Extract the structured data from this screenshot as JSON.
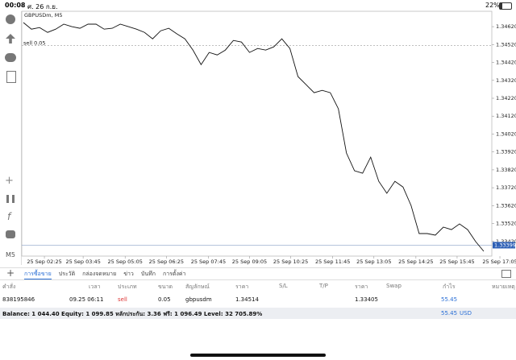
{
  "status_bar": {
    "time": "00:08",
    "date": "ศ. 26 ก.ย.",
    "battery": "22%"
  },
  "chart": {
    "type": "line",
    "symbol": "GBPUSDm, M5",
    "color": "#111111",
    "values": [
      1.34643,
      1.34606,
      1.34615,
      1.34588,
      1.34606,
      1.34634,
      1.3462,
      1.34611,
      1.34634,
      1.34634,
      1.34606,
      1.34611,
      1.34634,
      1.3462,
      1.34606,
      1.34588,
      1.34552,
      1.34597,
      1.34611,
      1.3458,
      1.34552,
      1.34489,
      1.34408,
      1.34476,
      1.34462,
      1.34489,
      1.34543,
      1.34534,
      1.34476,
      1.34498,
      1.34489,
      1.34507,
      1.34552,
      1.34498,
      1.34341,
      1.34296,
      1.34251,
      1.34264,
      1.34251,
      1.34161,
      1.33914,
      1.33815,
      1.33801,
      1.33891,
      1.33756,
      1.33689,
      1.33756,
      1.33724,
      1.33621,
      1.33464,
      1.33464,
      1.33455,
      1.335,
      1.33486,
      1.33518,
      1.33486,
      1.33419,
      1.33365
    ],
    "xlim": [
      -0.2,
      57
    ],
    "ylim": [
      1.33338,
      1.34706
    ],
    "yticks": [
      {
        "value": 1.3462,
        "label": "1.34620"
      },
      {
        "value": 1.3452,
        "label": "1.34520"
      },
      {
        "value": 1.3442,
        "label": "1.34420"
      },
      {
        "value": 1.3432,
        "label": "1.34320"
      },
      {
        "value": 1.3422,
        "label": "1.34220"
      },
      {
        "value": 1.3412,
        "label": "1.34120"
      },
      {
        "value": 1.3402,
        "label": "1.34020"
      },
      {
        "value": 1.3392,
        "label": "1.33920"
      },
      {
        "value": 1.3382,
        "label": "1.33820"
      },
      {
        "value": 1.3372,
        "label": "1.33720"
      },
      {
        "value": 1.3362,
        "label": "1.33620"
      },
      {
        "value": 1.3352,
        "label": "1.33520"
      },
      {
        "value": 1.3342,
        "label": "1.33420"
      }
    ],
    "xticks": [
      {
        "value": 2.6,
        "label": "25 Sep 02:25"
      },
      {
        "value": 7.4,
        "label": "25 Sep 03:45"
      },
      {
        "value": 12.6,
        "label": "25 Sep 05:05"
      },
      {
        "value": 17.7,
        "label": "25 Sep 06:25"
      },
      {
        "value": 22.9,
        "label": "25 Sep 07:45"
      },
      {
        "value": 28,
        "label": "25 Sep 09:05"
      },
      {
        "value": 33.1,
        "label": "25 Sep 10:25"
      },
      {
        "value": 38.3,
        "label": "25 Sep 11:45"
      },
      {
        "value": 43.4,
        "label": "25 Sep 13:05"
      },
      {
        "value": 48.6,
        "label": "25 Sep 14:25"
      },
      {
        "value": 53.7,
        "label": "25 Sep 15:45"
      },
      {
        "value": 59,
        "label": "25 Sep 17:05"
      }
    ],
    "sell_level": {
      "value": 1.34514,
      "label": "sell 0.05"
    },
    "current_price": {
      "value": 1.33399,
      "label": "1.33399"
    }
  },
  "toolbar": {
    "timeframe": "M5"
  },
  "tabs": [
    "การซื้อขาย",
    "ประวัติ",
    "กล่องจดหมาย",
    "ข่าว",
    "บันทึก",
    "การตั้งค่า"
  ],
  "table": {
    "headers": [
      "คำสั่ง",
      "เวลา",
      "ประเภท",
      "ขนาด",
      "สัญลักษณ์",
      "ราคา",
      "S/L",
      "T/P",
      "ราคา",
      "Swap",
      "กำไร",
      "หมายเหตุ"
    ],
    "row": [
      "838195846",
      "09.25 06:11",
      "sell",
      "0.05",
      "gbpusdm",
      "1.34514",
      "",
      "",
      "1.33405",
      "",
      "55.45",
      ""
    ]
  },
  "balance": {
    "text": "Balance: 1 044.40 Equity: 1 099.85 หลักประกัน: 3.36 ฟรี: 1 096.49 Level: 32 705.89%",
    "profit": "55.45",
    "currency": "USD"
  }
}
